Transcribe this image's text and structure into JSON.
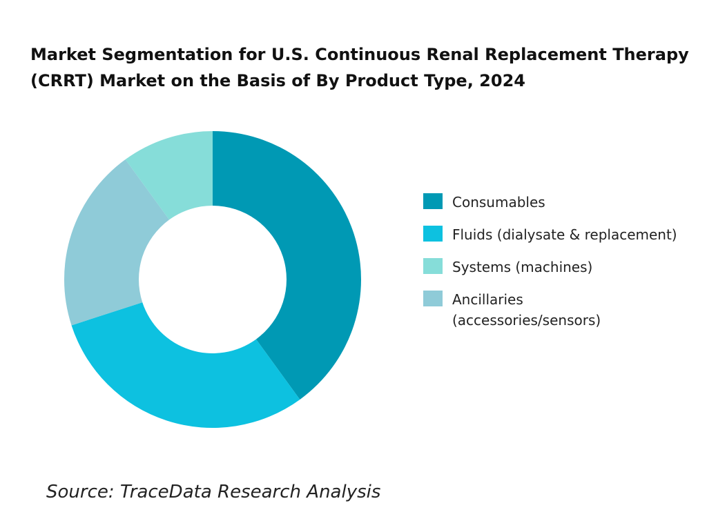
{
  "chart_data": {
    "type": "pie",
    "donut": true,
    "title": "Market Segmentation for U.S. Continuous Renal Replacement Therapy (CRRT) Market on the Basis of  By Product Type, 2024",
    "slices": [
      {
        "label": "Consumables",
        "value": 40,
        "color": "#0099B4"
      },
      {
        "label": "Fluids (dialysate & replacement)",
        "value": 30,
        "color": "#0DC1E0"
      },
      {
        "label": "Ancillaries (accessories/sensors)",
        "value": 20,
        "color": "#8FCBD8"
      },
      {
        "label": "Systems (machines)",
        "value": 10,
        "color": "#86DDD9"
      }
    ],
    "legend": {
      "placement": "right",
      "entries": [
        {
          "label": "Consumables",
          "color": "#0099B4"
        },
        {
          "label": "Fluids (dialysate & replacement)",
          "color": "#0DC1E0"
        },
        {
          "label": "Systems (machines)",
          "color": "#86DDD9"
        },
        {
          "label": "Ancillaries (accessories/sensors)",
          "color": "#8FCBD8"
        }
      ]
    }
  },
  "source": "Source: TraceData Research Analysis"
}
